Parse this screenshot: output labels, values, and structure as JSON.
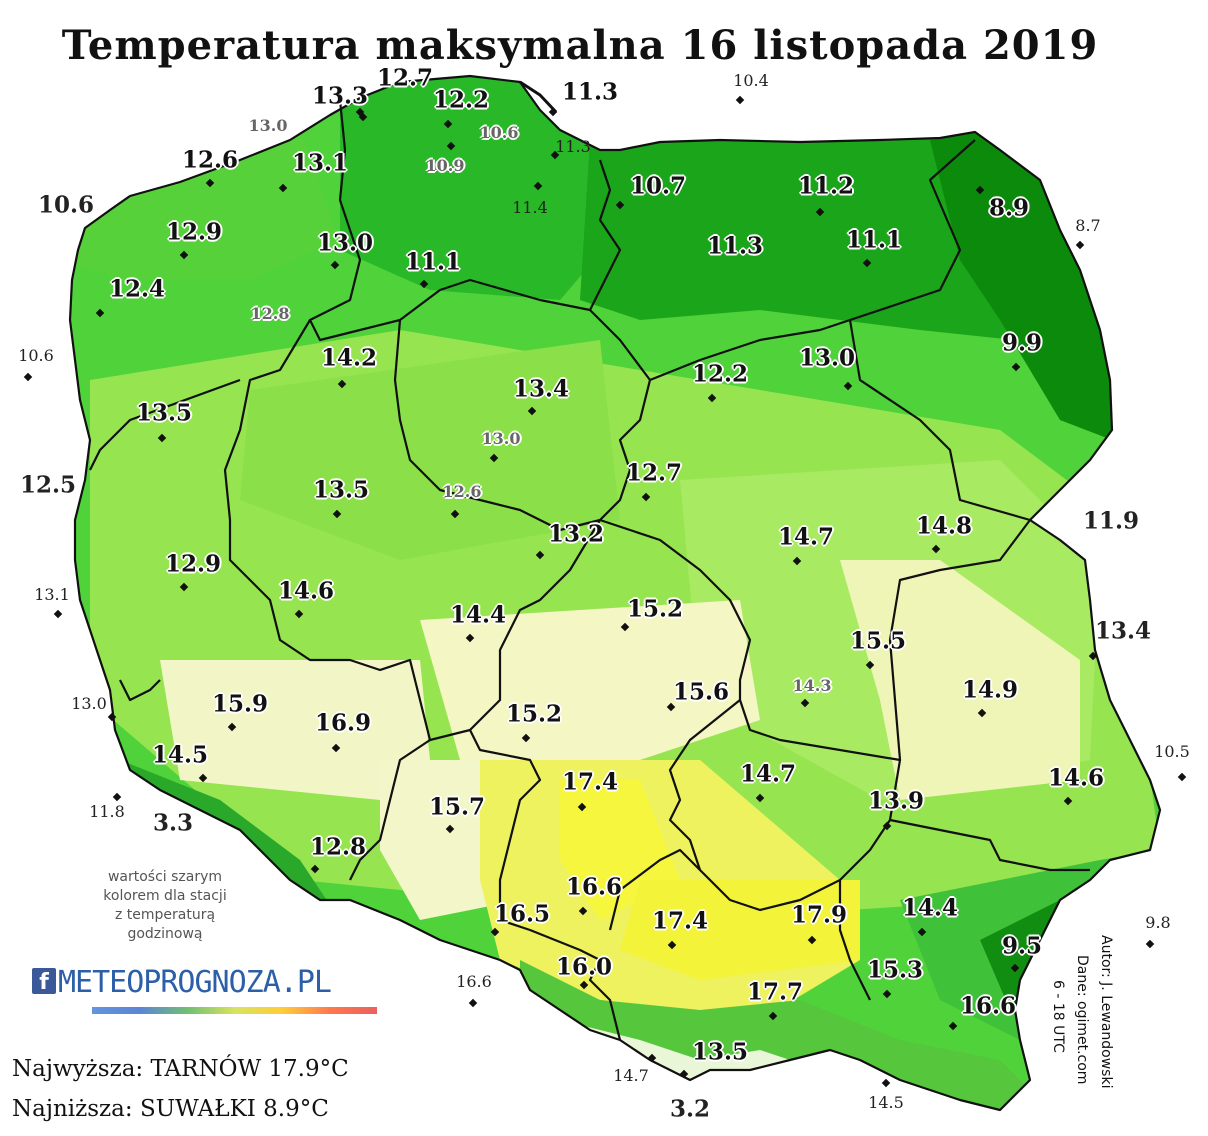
{
  "title": "Temperatura maksymalna 16 listopada 2019",
  "legend_note": [
    "wartości szarym",
    "kolorem dla stacji",
    "z temperaturą",
    "godzinową"
  ],
  "logo": {
    "fb_letter": "f",
    "text": "METEOPROGNOZA.PL"
  },
  "extremes": {
    "max_text": "Najwyższa: TARNÓW 17.9°C",
    "min_text": "Najniższa: SUWAŁKI 8.9°C"
  },
  "credits": {
    "author": "Autor: J. Lewandowski",
    "data": "Dane: ogimet.com",
    "period": "6 - 18 UTC"
  },
  "colors": {
    "dark_green": "#0a8a0a",
    "green": "#2ec22e",
    "light_green": "#9ae85a",
    "pale_yellow": "#f6f7c4",
    "yellow": "#f2f23c",
    "mountain": "#f7fbf0"
  },
  "stations": [
    {
      "v": "13.3",
      "t": "big"
    },
    {
      "v": "12.7",
      "t": "big"
    },
    {
      "v": "12.2",
      "t": "big"
    },
    {
      "v": "11.3",
      "t": "big"
    },
    {
      "v": "10.4",
      "t": "outside"
    },
    {
      "v": "13.0",
      "t": "small"
    },
    {
      "v": "10.6",
      "t": "small"
    },
    {
      "v": "11.3",
      "t": "outside"
    },
    {
      "v": "12.6",
      "t": "big"
    },
    {
      "v": "13.1",
      "t": "big"
    },
    {
      "v": "10.9",
      "t": "small"
    },
    {
      "v": "10.7",
      "t": "big"
    },
    {
      "v": "11.2",
      "t": "big"
    },
    {
      "v": "11.4",
      "t": "outside"
    },
    {
      "v": "10.6",
      "t": "outsidebig"
    },
    {
      "v": "8.9",
      "t": "big"
    },
    {
      "v": "8.7",
      "t": "outside"
    },
    {
      "v": "12.9",
      "t": "big"
    },
    {
      "v": "13.0",
      "t": "big"
    },
    {
      "v": "11.1",
      "t": "big"
    },
    {
      "v": "11.3",
      "t": "big"
    },
    {
      "v": "11.1",
      "t": "big"
    },
    {
      "v": "12.4",
      "t": "big"
    },
    {
      "v": "12.8",
      "t": "small"
    },
    {
      "v": "10.6",
      "t": "outside"
    },
    {
      "v": "14.2",
      "t": "big"
    },
    {
      "v": "9.9",
      "t": "big"
    },
    {
      "v": "13.0",
      "t": "big"
    },
    {
      "v": "13.4",
      "t": "big"
    },
    {
      "v": "12.2",
      "t": "big"
    },
    {
      "v": "13.5",
      "t": "big"
    },
    {
      "v": "13.0",
      "t": "small"
    },
    {
      "v": "12.5",
      "t": "outsidebig"
    },
    {
      "v": "13.5",
      "t": "big"
    },
    {
      "v": "12.6",
      "t": "small"
    },
    {
      "v": "12.7",
      "t": "big"
    },
    {
      "v": "11.9",
      "t": "outsidebig"
    },
    {
      "v": "13.2",
      "t": "big"
    },
    {
      "v": "14.7",
      "t": "big"
    },
    {
      "v": "14.8",
      "t": "big"
    },
    {
      "v": "12.9",
      "t": "big"
    },
    {
      "v": "13.1",
      "t": "outside"
    },
    {
      "v": "14.6",
      "t": "big"
    },
    {
      "v": "15.2",
      "t": "big"
    },
    {
      "v": "14.4",
      "t": "big"
    },
    {
      "v": "13.4",
      "t": "outsidebig"
    },
    {
      "v": "15.5",
      "t": "big"
    },
    {
      "v": "15.9",
      "t": "big"
    },
    {
      "v": "13.0",
      "t": "outside"
    },
    {
      "v": "16.9",
      "t": "big"
    },
    {
      "v": "15.6",
      "t": "big"
    },
    {
      "v": "14.3",
      "t": "small"
    },
    {
      "v": "15.2",
      "t": "big"
    },
    {
      "v": "14.9",
      "t": "big"
    },
    {
      "v": "10.5",
      "t": "outside"
    },
    {
      "v": "14.5",
      "t": "big"
    },
    {
      "v": "17.4",
      "t": "big"
    },
    {
      "v": "14.7",
      "t": "big"
    },
    {
      "v": "14.6",
      "t": "big"
    },
    {
      "v": "11.8",
      "t": "outside"
    },
    {
      "v": "3.3",
      "t": "outsidebig"
    },
    {
      "v": "15.7",
      "t": "big"
    },
    {
      "v": "13.9",
      "t": "big"
    },
    {
      "v": "12.8",
      "t": "big"
    },
    {
      "v": "16.6",
      "t": "big"
    },
    {
      "v": "16.5",
      "t": "big"
    },
    {
      "v": "17.4",
      "t": "big"
    },
    {
      "v": "17.9",
      "t": "big"
    },
    {
      "v": "14.4",
      "t": "big"
    },
    {
      "v": "9.8",
      "t": "outside"
    },
    {
      "v": "9.5",
      "t": "big"
    },
    {
      "v": "16.6",
      "t": "outside"
    },
    {
      "v": "16.0",
      "t": "big"
    },
    {
      "v": "15.3",
      "t": "big"
    },
    {
      "v": "17.7",
      "t": "big"
    },
    {
      "v": "16.6",
      "t": "big"
    },
    {
      "v": "14.7",
      "t": "outside"
    },
    {
      "v": "13.5",
      "t": "big"
    },
    {
      "v": "3.2",
      "t": "outsidebig"
    },
    {
      "v": "14.5",
      "t": "outside"
    }
  ]
}
